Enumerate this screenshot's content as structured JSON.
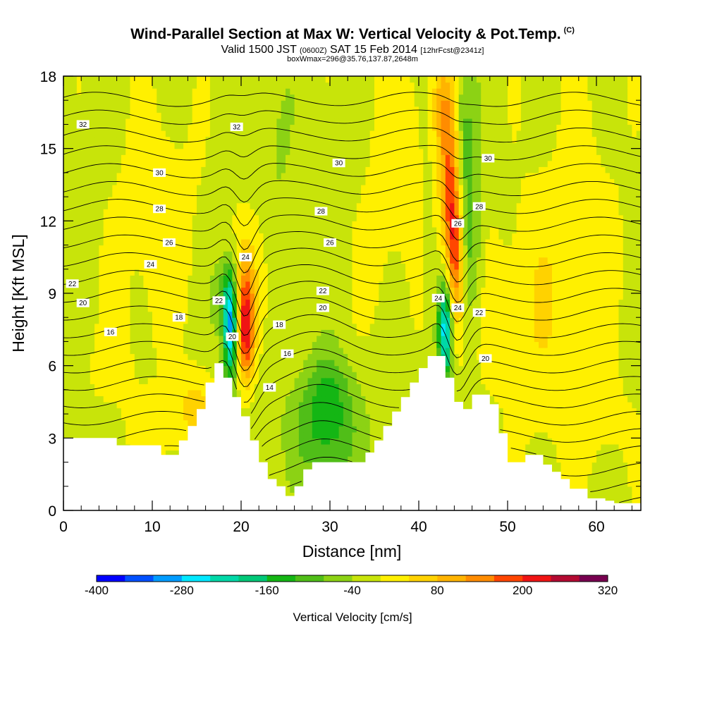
{
  "header": {
    "title": "Wind-Parallel Section at Max W: Vertical Velocity & Pot.Temp.",
    "copyright": "(C)",
    "valid_prefix": "Valid 1500 JST",
    "valid_z": "(0600Z)",
    "valid_suffix": "SAT 15 Feb 2014",
    "forecast": "[12hrFcst@2341z]",
    "box_info": "boxWmax=296@35.76,137.87,2648m"
  },
  "chart_data": {
    "type": "heatmap",
    "title": "Wind-Parallel Section at Max W: Vertical Velocity & Pot.Temp.",
    "xlabel": "Distance [nm]",
    "ylabel": "Height [Kft MSL]",
    "xlim": [
      0,
      65
    ],
    "ylim": [
      0,
      18
    ],
    "x_ticks": [
      "0",
      "10",
      "20",
      "30",
      "40",
      "50",
      "60"
    ],
    "y_ticks": [
      "0",
      "3",
      "6",
      "9",
      "12",
      "15",
      "18"
    ],
    "colorbar": {
      "title": "Vertical Velocity [cm/s]",
      "tick_labels": [
        "-400",
        "-280",
        "-160",
        "-40",
        "80",
        "200",
        "320"
      ],
      "tick_values": [
        -400,
        -280,
        -160,
        -40,
        80,
        200,
        320
      ],
      "range": [
        -400,
        320
      ],
      "bins": 18,
      "colors": [
        "#0000ff",
        "#0050ff",
        "#009cff",
        "#00e8ff",
        "#00d8a8",
        "#00c878",
        "#14b614",
        "#50be18",
        "#8cd214",
        "#c8e40a",
        "#fff000",
        "#ffd200",
        "#ffb400",
        "#ff8c00",
        "#ff4600",
        "#f01414",
        "#b40a32",
        "#780050"
      ]
    },
    "terrain": {
      "x": [
        0,
        6,
        6,
        11,
        11,
        13,
        13,
        14,
        14,
        15,
        15,
        16,
        16,
        17,
        17,
        18,
        18,
        19,
        19,
        20,
        20,
        21,
        21,
        22,
        22,
        23,
        23,
        24,
        24,
        25,
        25,
        26,
        26,
        27,
        27,
        28,
        28,
        29,
        29,
        30,
        30,
        31,
        31,
        32,
        32,
        33,
        33,
        34,
        34,
        35,
        35,
        36,
        36,
        37,
        37,
        38,
        38,
        39,
        39,
        40,
        40,
        41,
        41,
        42,
        42,
        43,
        43,
        44,
        44,
        45,
        45,
        46,
        46,
        47,
        47,
        48,
        48,
        49,
        49,
        50,
        50,
        51,
        51,
        52,
        52,
        53,
        53,
        54,
        54,
        55,
        55,
        56,
        56,
        57,
        57,
        58,
        58,
        59,
        59,
        60,
        60,
        61,
        61,
        62,
        62,
        63,
        63,
        64,
        64,
        65
      ],
      "y": [
        3,
        3,
        2.7,
        2.7,
        2.3,
        2.3,
        2.9,
        2.9,
        3.5,
        3.5,
        4.2,
        4.2,
        5.3,
        5.3,
        6.1,
        6.1,
        5.5,
        5.5,
        4.7,
        4.7,
        3.9,
        3.9,
        2.9,
        2.9,
        2,
        2,
        1.3,
        1.3,
        1,
        1,
        0.6,
        0.6,
        1,
        1,
        1.7,
        1.7,
        2,
        2,
        2,
        2,
        2,
        2,
        2,
        2,
        2,
        2,
        2,
        2,
        2.4,
        2.4,
        2.9,
        2.9,
        3.5,
        3.5,
        4.1,
        4.1,
        4.7,
        4.7,
        5.3,
        5.3,
        5.9,
        5.9,
        6.4,
        6.4,
        6.4,
        6.4,
        5.5,
        5.5,
        4.5,
        4.5,
        4.2,
        4.2,
        4.8,
        4.8,
        4.8,
        4.8,
        4.4,
        4.4,
        3.2,
        3.2,
        2,
        2,
        2,
        2,
        2.3,
        2.3,
        2.3,
        2.3,
        1.9,
        1.9,
        1.6,
        1.6,
        1.3,
        1.3,
        0.9,
        0.9,
        0.9,
        0.9,
        0.5,
        0.5,
        0.5,
        0.5,
        0.4,
        0.4,
        0.3,
        0.3,
        0.3,
        0.3,
        0.3,
        0.3
      ]
    },
    "vertical_velocity_features": [
      {
        "x": 20.5,
        "y": 8.0,
        "sx": 0.7,
        "sy": 1.6,
        "value": 200
      },
      {
        "x": 20.6,
        "y": 6.8,
        "sx": 0.6,
        "sy": 1.0,
        "value": 60
      },
      {
        "x": 21.5,
        "y": 9.5,
        "sx": 1.6,
        "sy": 2.2,
        "value": 50
      },
      {
        "x": 18.8,
        "y": 7.5,
        "sx": 0.55,
        "sy": 1.6,
        "value": -260
      },
      {
        "x": 18.2,
        "y": 8.8,
        "sx": 1.0,
        "sy": 1.2,
        "value": -90
      },
      {
        "x": 44.1,
        "y": 10.6,
        "sx": 0.7,
        "sy": 2.4,
        "value": 200
      },
      {
        "x": 43.4,
        "y": 14.0,
        "sx": 0.8,
        "sy": 2.5,
        "value": 150
      },
      {
        "x": 42.5,
        "y": 16.8,
        "sx": 0.8,
        "sy": 1.3,
        "value": 80
      },
      {
        "x": 43.0,
        "y": 7.5,
        "sx": 0.6,
        "sy": 1.5,
        "value": -260
      },
      {
        "x": 45.2,
        "y": 14.5,
        "sx": 0.9,
        "sy": 3.0,
        "value": -90
      },
      {
        "x": 46.0,
        "y": 10.5,
        "sx": 0.8,
        "sy": 2.0,
        "value": -60
      },
      {
        "x": 29.5,
        "y": 3.3,
        "sx": 2.8,
        "sy": 1.6,
        "value": -110
      },
      {
        "x": 29.8,
        "y": 5.2,
        "sx": 1.8,
        "sy": 1.2,
        "value": -60
      },
      {
        "x": 10.5,
        "y": 12.0,
        "sx": 3.5,
        "sy": 3.5,
        "value": 40
      },
      {
        "x": 5.0,
        "y": 6.0,
        "sx": 3.0,
        "sy": 1.5,
        "value": 20
      },
      {
        "x": 11.0,
        "y": 3.5,
        "sx": 2.5,
        "sy": 1.0,
        "value": 40
      },
      {
        "x": 15.0,
        "y": 4.5,
        "sx": 1.5,
        "sy": 1.0,
        "value": 60
      },
      {
        "x": 36.0,
        "y": 12.0,
        "sx": 2.0,
        "sy": 4.0,
        "value": 30
      },
      {
        "x": 52.0,
        "y": 8.0,
        "sx": 3.5,
        "sy": 3.0,
        "value": 40
      },
      {
        "x": 58.0,
        "y": 11.0,
        "sx": 4.0,
        "sy": 5.0,
        "value": 30
      },
      {
        "x": 60.0,
        "y": 3.5,
        "sx": 4.0,
        "sy": 1.5,
        "value": 20
      },
      {
        "x": 24.0,
        "y": 15.0,
        "sx": 1.5,
        "sy": 3.0,
        "value": -30
      },
      {
        "x": 39.0,
        "y": 16.0,
        "sx": 1.5,
        "sy": 2.5,
        "value": 30
      }
    ],
    "potential_temperature_contours": {
      "interval": 1,
      "labels": [
        {
          "text": "32",
          "x": 2.2,
          "y": 16.0
        },
        {
          "text": "32",
          "x": 19.5,
          "y": 15.9
        },
        {
          "text": "30",
          "x": 10.8,
          "y": 14.0
        },
        {
          "text": "30",
          "x": 31.0,
          "y": 14.4
        },
        {
          "text": "30",
          "x": 47.8,
          "y": 14.6
        },
        {
          "text": "28",
          "x": 10.8,
          "y": 12.5
        },
        {
          "text": "28",
          "x": 29.0,
          "y": 12.4
        },
        {
          "text": "28",
          "x": 46.8,
          "y": 12.6
        },
        {
          "text": "26",
          "x": 11.9,
          "y": 11.1
        },
        {
          "text": "26",
          "x": 30.0,
          "y": 11.1
        },
        {
          "text": "26",
          "x": 44.4,
          "y": 11.9
        },
        {
          "text": "24",
          "x": 9.8,
          "y": 10.2
        },
        {
          "text": "24",
          "x": 20.5,
          "y": 10.5
        },
        {
          "text": "24",
          "x": 42.2,
          "y": 8.8
        },
        {
          "text": "24",
          "x": 44.4,
          "y": 8.4
        },
        {
          "text": "22",
          "x": 1.0,
          "y": 9.4
        },
        {
          "text": "22",
          "x": 29.2,
          "y": 9.1
        },
        {
          "text": "22",
          "x": 46.8,
          "y": 8.2
        },
        {
          "text": "22",
          "x": 17.5,
          "y": 8.7
        },
        {
          "text": "20",
          "x": 2.2,
          "y": 8.6
        },
        {
          "text": "20",
          "x": 29.2,
          "y": 8.4
        },
        {
          "text": "20",
          "x": 19.0,
          "y": 7.2
        },
        {
          "text": "20",
          "x": 47.5,
          "y": 6.3
        },
        {
          "text": "18",
          "x": 13.0,
          "y": 8.0
        },
        {
          "text": "18",
          "x": 24.3,
          "y": 7.7
        },
        {
          "text": "16",
          "x": 5.3,
          "y": 7.4
        },
        {
          "text": "16",
          "x": 25.2,
          "y": 6.5
        },
        {
          "text": "14",
          "x": 23.2,
          "y": 5.1
        }
      ]
    }
  }
}
